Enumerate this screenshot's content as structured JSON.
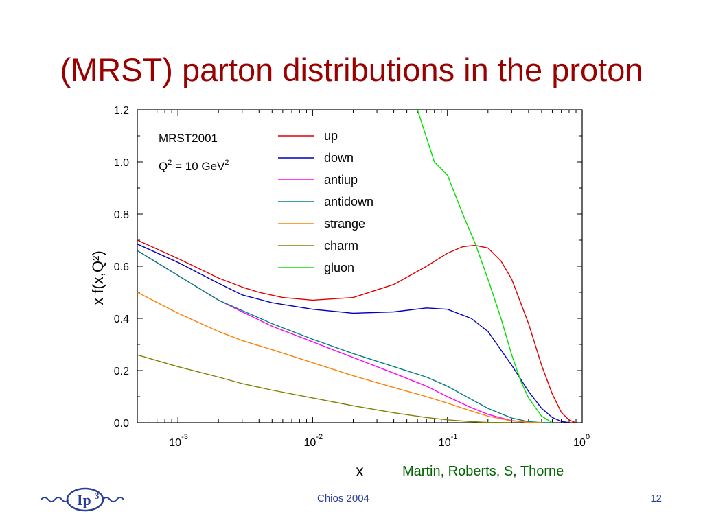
{
  "slide": {
    "title": "(MRST) parton distributions in the proton",
    "credit": "Martin, Roberts, S, Thorne",
    "footer_center": "Chios 2004",
    "page_number": "12",
    "logo_text": "Ip",
    "logo_superscript": "3"
  },
  "colors": {
    "title": "#990000",
    "credit": "#006600",
    "footer": "#2a3f9a",
    "logo": "#2a3f9a"
  },
  "chart_data": {
    "type": "line",
    "xscale": "log",
    "xlim": [
      0.0005,
      1.0
    ],
    "ylim": [
      0.0,
      1.2
    ],
    "xlabel": "x",
    "ylabel": "x f(x,Q²)",
    "yticks": [
      "0.0",
      "0.2",
      "0.4",
      "0.6",
      "0.8",
      "1.0",
      "1.2"
    ],
    "xticks": [
      {
        "value": 0.001,
        "base": "10",
        "exp": "-3"
      },
      {
        "value": 0.01,
        "base": "10",
        "exp": "-2"
      },
      {
        "value": 0.1,
        "base": "10",
        "exp": "-1"
      },
      {
        "value": 1,
        "base": "10",
        "exp": "0"
      }
    ],
    "annotation": {
      "line1": "MRST2001",
      "q": "Q",
      "q_exp": "2",
      "eq": " = 10 GeV",
      "unit_exp": "2"
    },
    "legend_position": "top-center",
    "grid": false,
    "series": [
      {
        "name": "up",
        "color": "#e00000",
        "x": [
          0.0005,
          0.001,
          0.002,
          0.003,
          0.004,
          0.006,
          0.01,
          0.02,
          0.04,
          0.07,
          0.1,
          0.13,
          0.16,
          0.2,
          0.25,
          0.3,
          0.4,
          0.5,
          0.6,
          0.7,
          0.8,
          0.9
        ],
        "y": [
          0.7,
          0.63,
          0.555,
          0.52,
          0.5,
          0.48,
          0.47,
          0.48,
          0.53,
          0.6,
          0.65,
          0.675,
          0.68,
          0.67,
          0.62,
          0.55,
          0.38,
          0.22,
          0.11,
          0.04,
          0.01,
          0.0
        ]
      },
      {
        "name": "down",
        "color": "#0000c0",
        "x": [
          0.0005,
          0.001,
          0.002,
          0.003,
          0.005,
          0.01,
          0.02,
          0.04,
          0.07,
          0.1,
          0.15,
          0.2,
          0.3,
          0.4,
          0.5,
          0.6,
          0.7,
          0.8
        ],
        "y": [
          0.685,
          0.615,
          0.535,
          0.49,
          0.46,
          0.435,
          0.42,
          0.425,
          0.44,
          0.435,
          0.4,
          0.35,
          0.22,
          0.12,
          0.055,
          0.02,
          0.005,
          0.0
        ]
      },
      {
        "name": "antiup",
        "color": "#ff00ff",
        "x": [
          0.0005,
          0.001,
          0.002,
          0.003,
          0.005,
          0.01,
          0.02,
          0.04,
          0.07,
          0.1,
          0.15,
          0.2,
          0.3,
          0.4,
          0.5
        ],
        "y": [
          0.66,
          0.565,
          0.47,
          0.425,
          0.37,
          0.31,
          0.25,
          0.19,
          0.14,
          0.1,
          0.058,
          0.032,
          0.008,
          0.001,
          0.0
        ]
      },
      {
        "name": "antidown",
        "color": "#008080",
        "x": [
          0.0005,
          0.001,
          0.002,
          0.003,
          0.005,
          0.01,
          0.02,
          0.04,
          0.07,
          0.1,
          0.15,
          0.2,
          0.3,
          0.4,
          0.5,
          0.6
        ],
        "y": [
          0.66,
          0.565,
          0.47,
          0.43,
          0.38,
          0.32,
          0.265,
          0.215,
          0.175,
          0.14,
          0.09,
          0.055,
          0.018,
          0.004,
          0.0005,
          0.0
        ]
      },
      {
        "name": "strange",
        "color": "#ff8000",
        "x": [
          0.0005,
          0.001,
          0.002,
          0.003,
          0.005,
          0.01,
          0.02,
          0.04,
          0.07,
          0.1,
          0.15,
          0.2,
          0.3,
          0.4,
          0.5
        ],
        "y": [
          0.5,
          0.42,
          0.35,
          0.315,
          0.28,
          0.23,
          0.18,
          0.135,
          0.1,
          0.075,
          0.045,
          0.025,
          0.007,
          0.001,
          0.0
        ]
      },
      {
        "name": "charm",
        "color": "#808000",
        "x": [
          0.0005,
          0.001,
          0.002,
          0.003,
          0.005,
          0.01,
          0.02,
          0.04,
          0.07,
          0.1,
          0.15,
          0.2,
          0.3
        ],
        "y": [
          0.26,
          0.215,
          0.175,
          0.15,
          0.125,
          0.095,
          0.065,
          0.038,
          0.02,
          0.011,
          0.004,
          0.001,
          0.0
        ]
      },
      {
        "name": "gluon",
        "color": "#00e000",
        "x": [
          0.06,
          0.08,
          0.1,
          0.13,
          0.16,
          0.2,
          0.25,
          0.3,
          0.35,
          0.4,
          0.5,
          0.6
        ],
        "y": [
          1.2,
          1.0,
          0.95,
          0.8,
          0.69,
          0.55,
          0.4,
          0.26,
          0.16,
          0.095,
          0.025,
          0.0
        ]
      }
    ]
  }
}
